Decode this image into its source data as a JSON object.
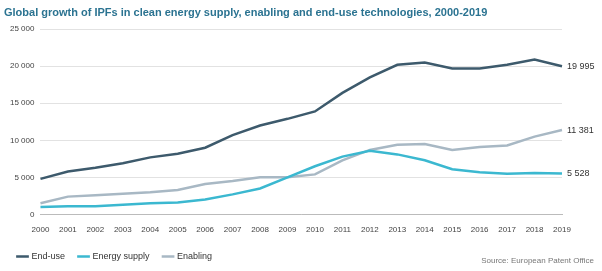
{
  "chart_data": {
    "type": "line",
    "title": "Global growth of IPFs in clean energy supply, enabling and end-use technologies, 2000-2019",
    "annotations": [
      "Source: European Patent Office"
    ],
    "categories": [
      "2000",
      "2001",
      "2002",
      "2003",
      "2004",
      "2005",
      "2006",
      "2007",
      "2008",
      "2009",
      "2010",
      "2011",
      "2012",
      "2013",
      "2014",
      "2015",
      "2016",
      "2017",
      "2018",
      "2019"
    ],
    "series": [
      {
        "name": "End-use",
        "color": "#3d5a6c",
        "values": [
          4800,
          5800,
          6300,
          6900,
          7700,
          8200,
          9000,
          10700,
          12000,
          12900,
          13900,
          16400,
          18500,
          20200,
          20500,
          19700,
          19700,
          20200,
          20900,
          19995
        ],
        "value_labels": [
          null,
          null,
          null,
          null,
          null,
          null,
          null,
          null,
          null,
          null,
          null,
          null,
          null,
          null,
          null,
          null,
          null,
          null,
          null,
          "19 995"
        ]
      },
      {
        "name": "Energy supply",
        "color": "#3bb8d0",
        "values": [
          1000,
          1100,
          1100,
          1300,
          1500,
          1600,
          2000,
          2700,
          3500,
          5000,
          6500,
          7800,
          8600,
          8100,
          7300,
          6100,
          5700,
          5500,
          5600,
          5528
        ],
        "value_labels": [
          null,
          null,
          null,
          null,
          null,
          null,
          null,
          null,
          null,
          null,
          null,
          null,
          null,
          null,
          null,
          null,
          null,
          null,
          null,
          "5 528"
        ]
      },
      {
        "name": "Enabling",
        "color": "#a8b8c4",
        "values": [
          1500,
          2400,
          2600,
          2800,
          3000,
          3300,
          4100,
          4500,
          5000,
          5000,
          5400,
          7300,
          8700,
          9400,
          9500,
          8700,
          9100,
          9300,
          10500,
          11381
        ],
        "value_labels": [
          null,
          null,
          null,
          null,
          null,
          null,
          null,
          null,
          null,
          null,
          null,
          null,
          null,
          null,
          null,
          null,
          null,
          null,
          null,
          "11 381"
        ]
      }
    ],
    "ylim": [
      0,
      25000
    ],
    "yticks": [
      0,
      {
        "value": 5000,
        "label": "5 000"
      },
      {
        "value": 10000,
        "label": "10 000"
      },
      {
        "value": 15000,
        "label": "15 000"
      },
      {
        "value": 20000,
        "label": "20 000"
      },
      {
        "value": 25000,
        "label": "25 000"
      }
    ],
    "grid": true,
    "legend": "bottom-left"
  }
}
